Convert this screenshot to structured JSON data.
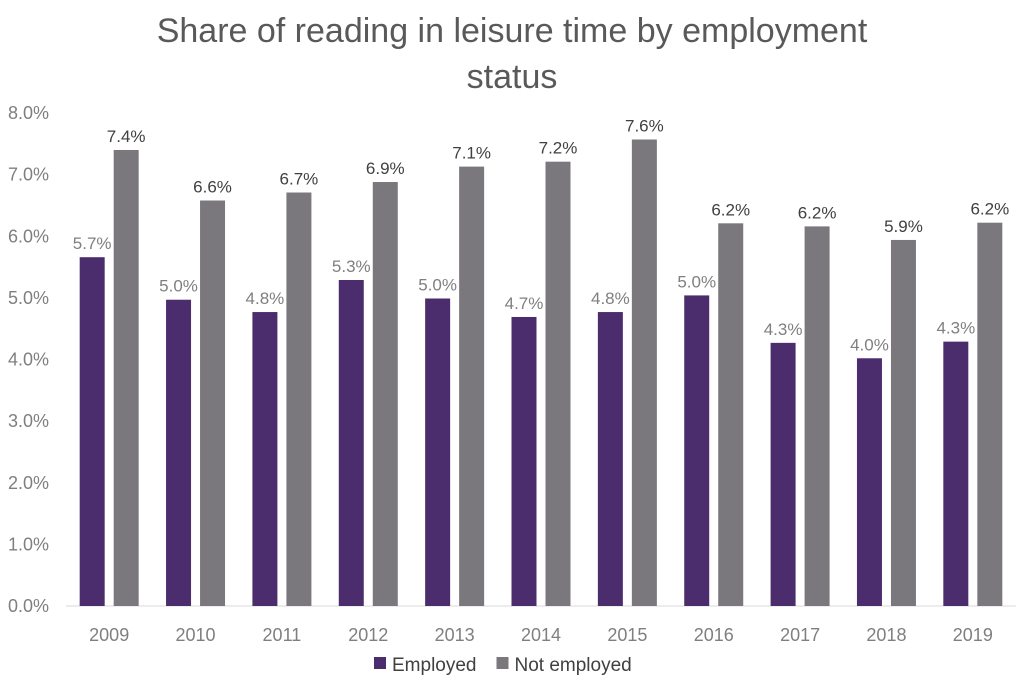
{
  "chart_data": {
    "type": "bar",
    "title_lines": [
      "Share of reading in leisure time by employment",
      "status"
    ],
    "xlabel": "",
    "ylabel": "",
    "categories": [
      "2009",
      "2010",
      "2011",
      "2012",
      "2013",
      "2014",
      "2015",
      "2016",
      "2017",
      "2018",
      "2019"
    ],
    "ylim": [
      0,
      8
    ],
    "yticks": [
      "0.0%",
      "1.0%",
      "2.0%",
      "3.0%",
      "4.0%",
      "5.0%",
      "6.0%",
      "7.0%",
      "8.0%"
    ],
    "grid": false,
    "legend_position": "bottom",
    "series": [
      {
        "name": "Employed",
        "color": "#4b2c6c",
        "values": [
          5.66,
          4.97,
          4.77,
          5.29,
          4.99,
          4.69,
          4.77,
          5.04,
          4.27,
          4.02,
          4.29
        ],
        "labels": [
          "5.7%",
          "5.0%",
          "4.8%",
          "5.3%",
          "5.0%",
          "4.7%",
          "4.8%",
          "5.0%",
          "4.3%",
          "4.0%",
          "4.3%"
        ],
        "label_color": "#7f7f7f"
      },
      {
        "name": "Not employed",
        "color": "#7a787c",
        "values": [
          7.4,
          6.58,
          6.71,
          6.88,
          7.13,
          7.21,
          7.57,
          6.21,
          6.16,
          5.94,
          6.22
        ],
        "labels": [
          "7.4%",
          "6.6%",
          "6.7%",
          "6.9%",
          "7.1%",
          "7.2%",
          "7.6%",
          "6.2%",
          "6.2%",
          "5.9%",
          "6.2%"
        ],
        "label_color": "#404040"
      }
    ]
  }
}
